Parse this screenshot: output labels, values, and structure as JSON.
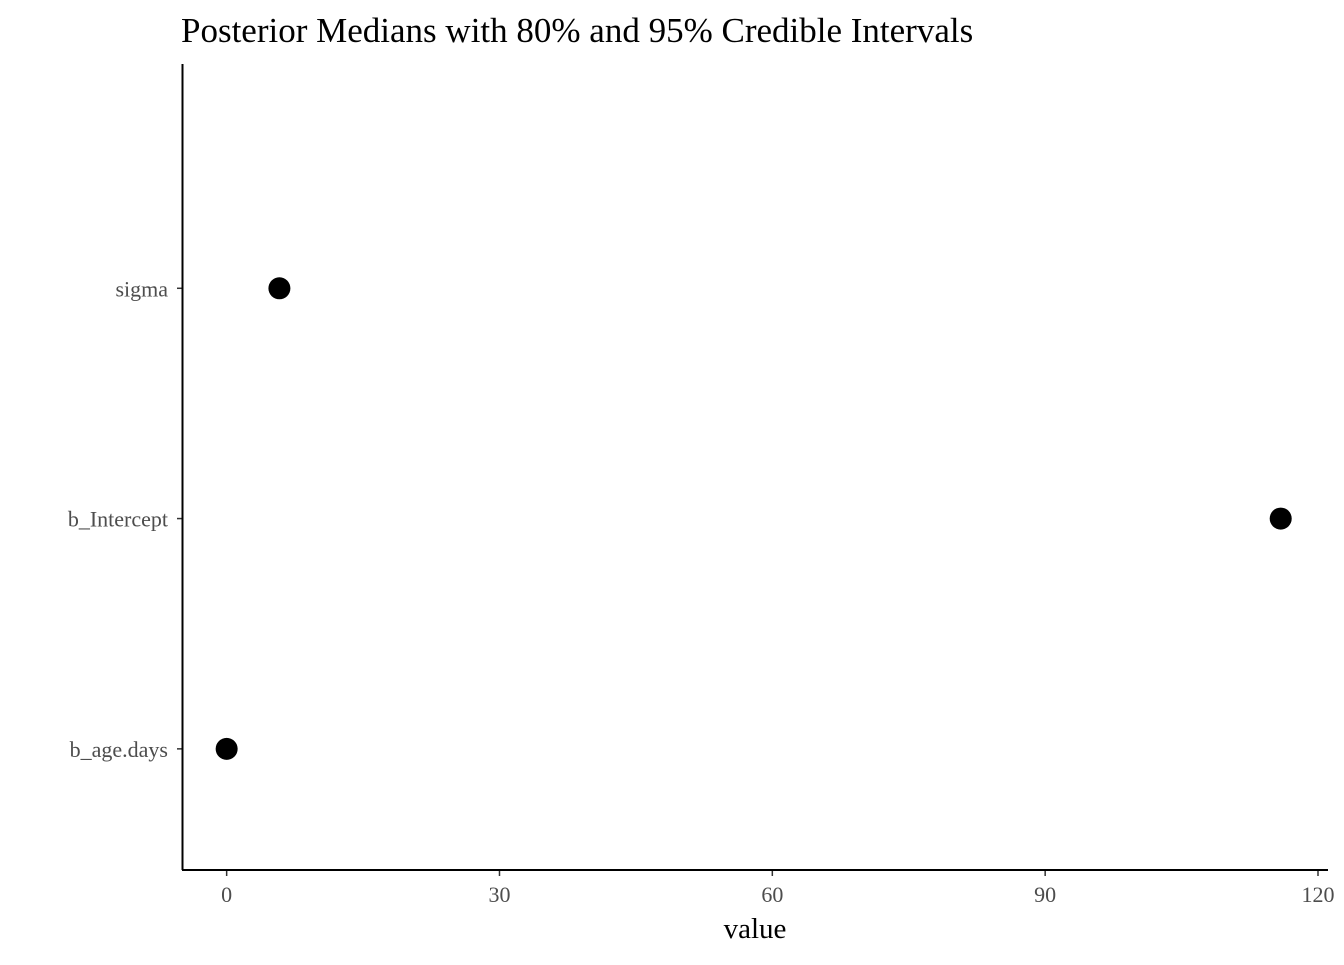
{
  "chart_data": {
    "type": "scatter",
    "title": "Posterior Medians with 80% and 95% Credible Intervals",
    "xlabel": "value",
    "ylabel": "",
    "categories": [
      "b_age.days",
      "b_Intercept",
      "sigma"
    ],
    "values": [
      0.0,
      115.9,
      5.8
    ],
    "xlim": [
      -4.8,
      121.1
    ],
    "xticks": [
      0,
      30,
      60,
      90,
      120
    ],
    "xtick_labels": [
      "0",
      "30",
      "60",
      "90",
      "120"
    ],
    "grid": false,
    "legend": "none",
    "point_color": "#000000"
  }
}
